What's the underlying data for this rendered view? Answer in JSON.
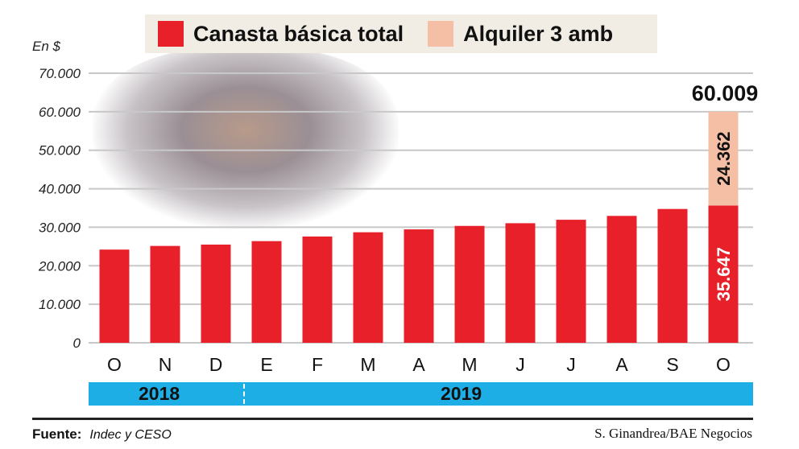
{
  "chart_data": {
    "type": "bar",
    "stacked": true,
    "ylabel": "En $",
    "ylim": [
      0,
      70000
    ],
    "yticks": [
      "0",
      "10.000",
      "20.000",
      "30.000",
      "40.000",
      "50.000",
      "60.000",
      "70.000"
    ],
    "grid": true,
    "legend_position": "top",
    "categories": [
      "O",
      "N",
      "D",
      "E",
      "F",
      "M",
      "A",
      "M",
      "J",
      "J",
      "A",
      "S",
      "O"
    ],
    "years": [
      {
        "label": "2018",
        "months": 3
      },
      {
        "label": "2019",
        "months": 10
      }
    ],
    "series": [
      {
        "name": "Canasta básica total",
        "color": "#e8202a",
        "values": [
          24200,
          25150,
          25500,
          26400,
          27600,
          28700,
          29450,
          30350,
          31050,
          31950,
          32950,
          34750,
          35647
        ]
      },
      {
        "name": "Alquiler 3 amb",
        "color": "#f5bfa6",
        "values": [
          null,
          null,
          null,
          null,
          null,
          null,
          null,
          null,
          null,
          null,
          null,
          null,
          24362
        ]
      }
    ],
    "data_labels": {
      "canasta_last": "35.647",
      "alquiler_last": "24.362",
      "total_last": "60.009"
    }
  },
  "footer": {
    "source_label": "Fuente:",
    "source": "Indec y CESO",
    "credit": "S. Ginandrea/BAE Negocios"
  }
}
